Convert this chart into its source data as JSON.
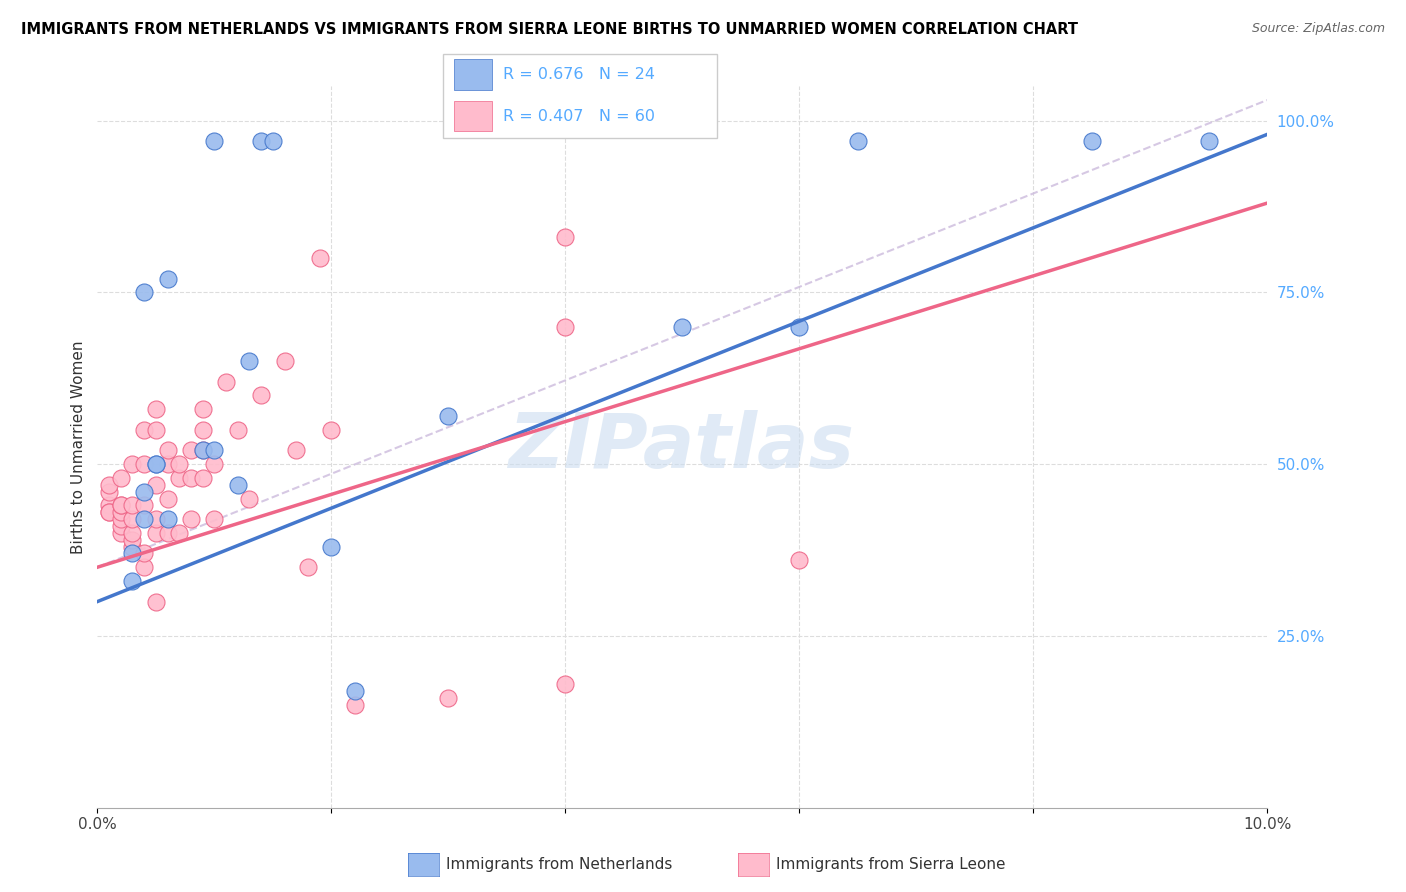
{
  "title": "IMMIGRANTS FROM NETHERLANDS VS IMMIGRANTS FROM SIERRA LEONE BIRTHS TO UNMARRIED WOMEN CORRELATION CHART",
  "source": "Source: ZipAtlas.com",
  "ylabel": "Births to Unmarried Women",
  "xlabel_blue": "Immigrants from Netherlands",
  "xlabel_pink": "Immigrants from Sierra Leone",
  "legend_blue": "R = 0.676   N = 24",
  "legend_pink": "R = 0.407   N = 60",
  "color_blue": "#99bbee",
  "color_pink": "#ffbbcc",
  "color_blue_line": "#4477cc",
  "color_pink_line": "#ee6688",
  "color_diagonal": "#ccbbdd",
  "color_right_axis": "#55aaff",
  "watermark_color": "#ccddf0",
  "xmin": 0.0,
  "xmax": 10.0,
  "ymin": 0.0,
  "ymax": 105.0,
  "xtick_positions": [
    0.0,
    2.0,
    4.0,
    6.0,
    8.0,
    10.0
  ],
  "xtick_labels": [
    "0.0%",
    "",
    "",
    "",
    "",
    "10.0%"
  ],
  "ytick_positions": [
    25.0,
    50.0,
    75.0,
    100.0
  ],
  "ytick_labels": [
    "25.0%",
    "50.0%",
    "75.0%",
    "100.0%"
  ],
  "blue_x": [
    0.3,
    0.3,
    0.4,
    0.4,
    0.4,
    0.5,
    0.5,
    0.6,
    0.6,
    0.9,
    1.0,
    1.0,
    1.2,
    1.3,
    1.4,
    1.5,
    2.0,
    2.2,
    3.0,
    5.0,
    6.0,
    8.5,
    9.5,
    6.5
  ],
  "blue_y": [
    37,
    33,
    42,
    46,
    75,
    50,
    50,
    42,
    77,
    52,
    52,
    97,
    47,
    65,
    97,
    97,
    38,
    17,
    57,
    70,
    70,
    97,
    97,
    97
  ],
  "pink_x": [
    0.1,
    0.1,
    0.1,
    0.1,
    0.1,
    0.2,
    0.2,
    0.2,
    0.2,
    0.2,
    0.2,
    0.2,
    0.3,
    0.3,
    0.3,
    0.3,
    0.3,
    0.3,
    0.4,
    0.4,
    0.4,
    0.4,
    0.4,
    0.5,
    0.5,
    0.5,
    0.5,
    0.5,
    0.5,
    0.6,
    0.6,
    0.6,
    0.6,
    0.7,
    0.7,
    0.7,
    0.8,
    0.8,
    0.8,
    0.9,
    0.9,
    0.9,
    0.9,
    1.0,
    1.0,
    1.1,
    1.2,
    1.3,
    1.4,
    1.6,
    1.7,
    1.8,
    1.9,
    2.0,
    2.2,
    3.0,
    4.0,
    4.0,
    4.0,
    6.0
  ],
  "pink_y": [
    44,
    43,
    43,
    46,
    47,
    40,
    41,
    42,
    43,
    44,
    44,
    48,
    38,
    39,
    40,
    42,
    44,
    50,
    35,
    37,
    44,
    50,
    55,
    30,
    40,
    42,
    47,
    55,
    58,
    40,
    45,
    50,
    52,
    40,
    48,
    50,
    42,
    48,
    52,
    48,
    52,
    55,
    58,
    42,
    50,
    62,
    55,
    45,
    60,
    65,
    52,
    35,
    80,
    55,
    15,
    16,
    18,
    70,
    83,
    36
  ],
  "blue_line_x": [
    0.0,
    10.0
  ],
  "blue_line_y": [
    30.0,
    98.0
  ],
  "pink_line_x": [
    0.0,
    10.0
  ],
  "pink_line_y": [
    35.0,
    88.0
  ],
  "diag_line_x": [
    0.0,
    10.0
  ],
  "diag_line_y": [
    35.0,
    103.0
  ]
}
